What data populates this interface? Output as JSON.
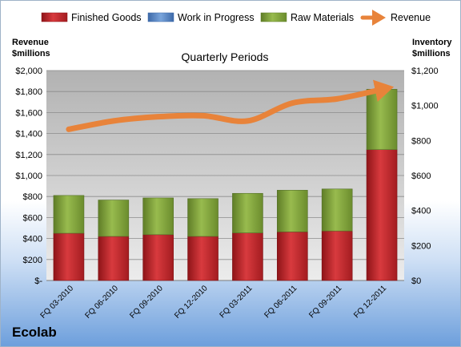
{
  "company": "Ecolab",
  "chart_data": {
    "type": "bar",
    "stacked": true,
    "subtitle": "Quarterly Periods",
    "categories": [
      "FQ 03-2010",
      "FQ 06-2010",
      "FQ 09-2010",
      "FQ 12-2010",
      "FQ 03-2011",
      "FQ 06-2011",
      "FQ 09-2011",
      "FQ 12-2011"
    ],
    "left_axis": {
      "title_line1": "Revenue",
      "title_line2": "$millions",
      "ylim": [
        0,
        2000
      ],
      "ticks": [
        {
          "value": 0,
          "label": "$-"
        },
        {
          "value": 200,
          "label": "$200"
        },
        {
          "value": 400,
          "label": "$400"
        },
        {
          "value": 600,
          "label": "$600"
        },
        {
          "value": 800,
          "label": "$800"
        },
        {
          "value": 1000,
          "label": "$1,000"
        },
        {
          "value": 1200,
          "label": "$1,200"
        },
        {
          "value": 1400,
          "label": "$1,400"
        },
        {
          "value": 1600,
          "label": "$1,600"
        },
        {
          "value": 1800,
          "label": "$1,800"
        },
        {
          "value": 2000,
          "label": "$2,000"
        }
      ]
    },
    "right_axis": {
      "title_line1": "Inventory",
      "title_line2": "$millions",
      "ylim": [
        0,
        1200
      ],
      "ticks": [
        {
          "value": 0,
          "label": "$0"
        },
        {
          "value": 200,
          "label": "$200"
        },
        {
          "value": 400,
          "label": "$400"
        },
        {
          "value": 600,
          "label": "$600"
        },
        {
          "value": 800,
          "label": "$800"
        },
        {
          "value": 1000,
          "label": "$1,000"
        },
        {
          "value": 1200,
          "label": "$1,200"
        }
      ]
    },
    "grid": true,
    "legend_position": "top",
    "series": [
      {
        "name": "Finished Goods",
        "axis": "right",
        "color": "#c0262a",
        "values": [
          270,
          252,
          262,
          252,
          272,
          278,
          283,
          748
        ]
      },
      {
        "name": "Work in Progress",
        "axis": "right",
        "color": "#4f7ec0",
        "values": [
          0,
          0,
          0,
          0,
          0,
          0,
          0,
          0
        ]
      },
      {
        "name": "Raw Materials",
        "axis": "right",
        "color": "#7c9f37",
        "values": [
          216,
          208,
          210,
          216,
          226,
          238,
          240,
          345
        ]
      },
      {
        "name": "Revenue",
        "axis": "left",
        "type": "line",
        "color": "#e8833a",
        "values": [
          1440,
          1520,
          1560,
          1570,
          1520,
          1690,
          1730,
          1820
        ]
      }
    ]
  }
}
